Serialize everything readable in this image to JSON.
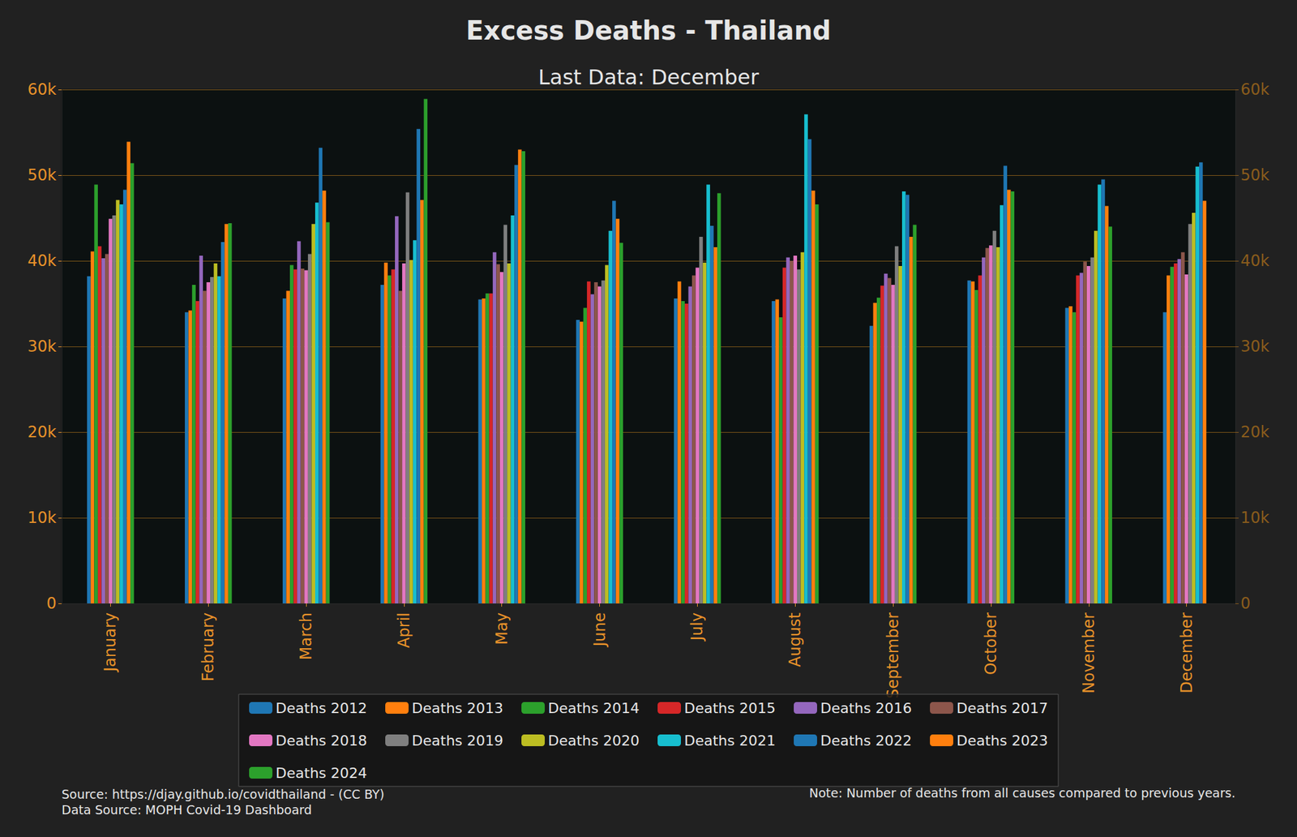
{
  "chart_data": {
    "type": "bar",
    "title": "Excess Deaths - Thailand",
    "subtitle": "Last Data: December",
    "source": "Source: https://djay.github.io/covidthailand - (CC BY)",
    "data_source": "Data Source: MOPH Covid-19 Dashboard",
    "note": "Note: Number of deaths from all causes compared to previous years.",
    "categories": [
      "January",
      "February",
      "March",
      "April",
      "May",
      "June",
      "July",
      "August",
      "September",
      "October",
      "November",
      "December"
    ],
    "series": [
      {
        "name": "Deaths 2012",
        "color": "#1f77b4",
        "values": [
          38200,
          34000,
          35600,
          37200,
          35500,
          33100,
          35600,
          35300,
          32400,
          37700,
          34500,
          34000
        ]
      },
      {
        "name": "Deaths 2013",
        "color": "#ff7f0e",
        "values": [
          41100,
          34200,
          36500,
          39800,
          35600,
          32900,
          37600,
          35500,
          35100,
          37600,
          34700,
          38300
        ]
      },
      {
        "name": "Deaths 2014",
        "color": "#2ca02c",
        "values": [
          48900,
          37200,
          39500,
          38300,
          36200,
          34500,
          35300,
          33400,
          35700,
          36600,
          34000,
          39300
        ]
      },
      {
        "name": "Deaths 2015",
        "color": "#d62728",
        "values": [
          41700,
          35300,
          39000,
          39000,
          36200,
          37600,
          35000,
          39200,
          37100,
          38300,
          38300,
          39700
        ]
      },
      {
        "name": "Deaths 2016",
        "color": "#9467bd",
        "values": [
          40300,
          40600,
          42300,
          45200,
          41000,
          36100,
          37000,
          40400,
          38500,
          40400,
          38600,
          40200
        ]
      },
      {
        "name": "Deaths 2017",
        "color": "#8c564b",
        "values": [
          40800,
          36500,
          39100,
          36500,
          39600,
          37500,
          38300,
          40000,
          38000,
          41500,
          39900,
          41000
        ]
      },
      {
        "name": "Deaths 2018",
        "color": "#e377c2",
        "values": [
          44900,
          37500,
          38900,
          39700,
          38700,
          37000,
          39200,
          40600,
          37200,
          41800,
          39400,
          38400
        ]
      },
      {
        "name": "Deaths 2019",
        "color": "#7f7f7f",
        "values": [
          45300,
          38100,
          40800,
          48000,
          44200,
          37700,
          42800,
          39000,
          41700,
          43500,
          40400,
          44300
        ]
      },
      {
        "name": "Deaths 2020",
        "color": "#bcbd22",
        "values": [
          47100,
          39700,
          44300,
          40100,
          39700,
          39500,
          39800,
          41000,
          39400,
          41600,
          43500,
          45600
        ]
      },
      {
        "name": "Deaths 2021",
        "color": "#17becf",
        "values": [
          46600,
          38200,
          46800,
          42400,
          45300,
          43500,
          48900,
          57100,
          48100,
          46500,
          48900,
          51000
        ]
      },
      {
        "name": "Deaths 2022",
        "color": "#1f77b4",
        "values": [
          48300,
          42200,
          53200,
          55400,
          51200,
          47000,
          44100,
          54200,
          47700,
          51100,
          49500,
          51500
        ]
      },
      {
        "name": "Deaths 2023",
        "color": "#ff7f0e",
        "values": [
          53900,
          44300,
          48200,
          47100,
          53000,
          44900,
          41600,
          48200,
          42800,
          48300,
          46400,
          47000
        ]
      },
      {
        "name": "Deaths 2024",
        "color": "#2ca02c",
        "values": [
          51400,
          44400,
          44500,
          58900,
          52800,
          42100,
          47900,
          46600,
          44200,
          48100,
          44000,
          null
        ]
      }
    ],
    "ylim": [
      0,
      60000
    ],
    "yticks": [
      0,
      {
        "value": 10000,
        "label": "10k"
      },
      {
        "value": 20000,
        "label": "20k"
      },
      {
        "value": 30000,
        "label": "30k"
      },
      {
        "value": 40000,
        "label": "40k"
      },
      {
        "value": 50000,
        "label": "50k"
      },
      {
        "value": 60000,
        "label": "60k"
      }
    ],
    "y2lim": [
      0,
      60000
    ],
    "y2ticks": [
      0,
      {
        "value": 10000,
        "label": "10k"
      },
      {
        "value": 20000,
        "label": "20k"
      },
      {
        "value": 30000,
        "label": "30k"
      },
      {
        "value": 40000,
        "label": "40k"
      },
      {
        "value": 50000,
        "label": "50k"
      },
      {
        "value": 60000,
        "label": "60k"
      }
    ],
    "grid": true,
    "legend": "lower center"
  }
}
